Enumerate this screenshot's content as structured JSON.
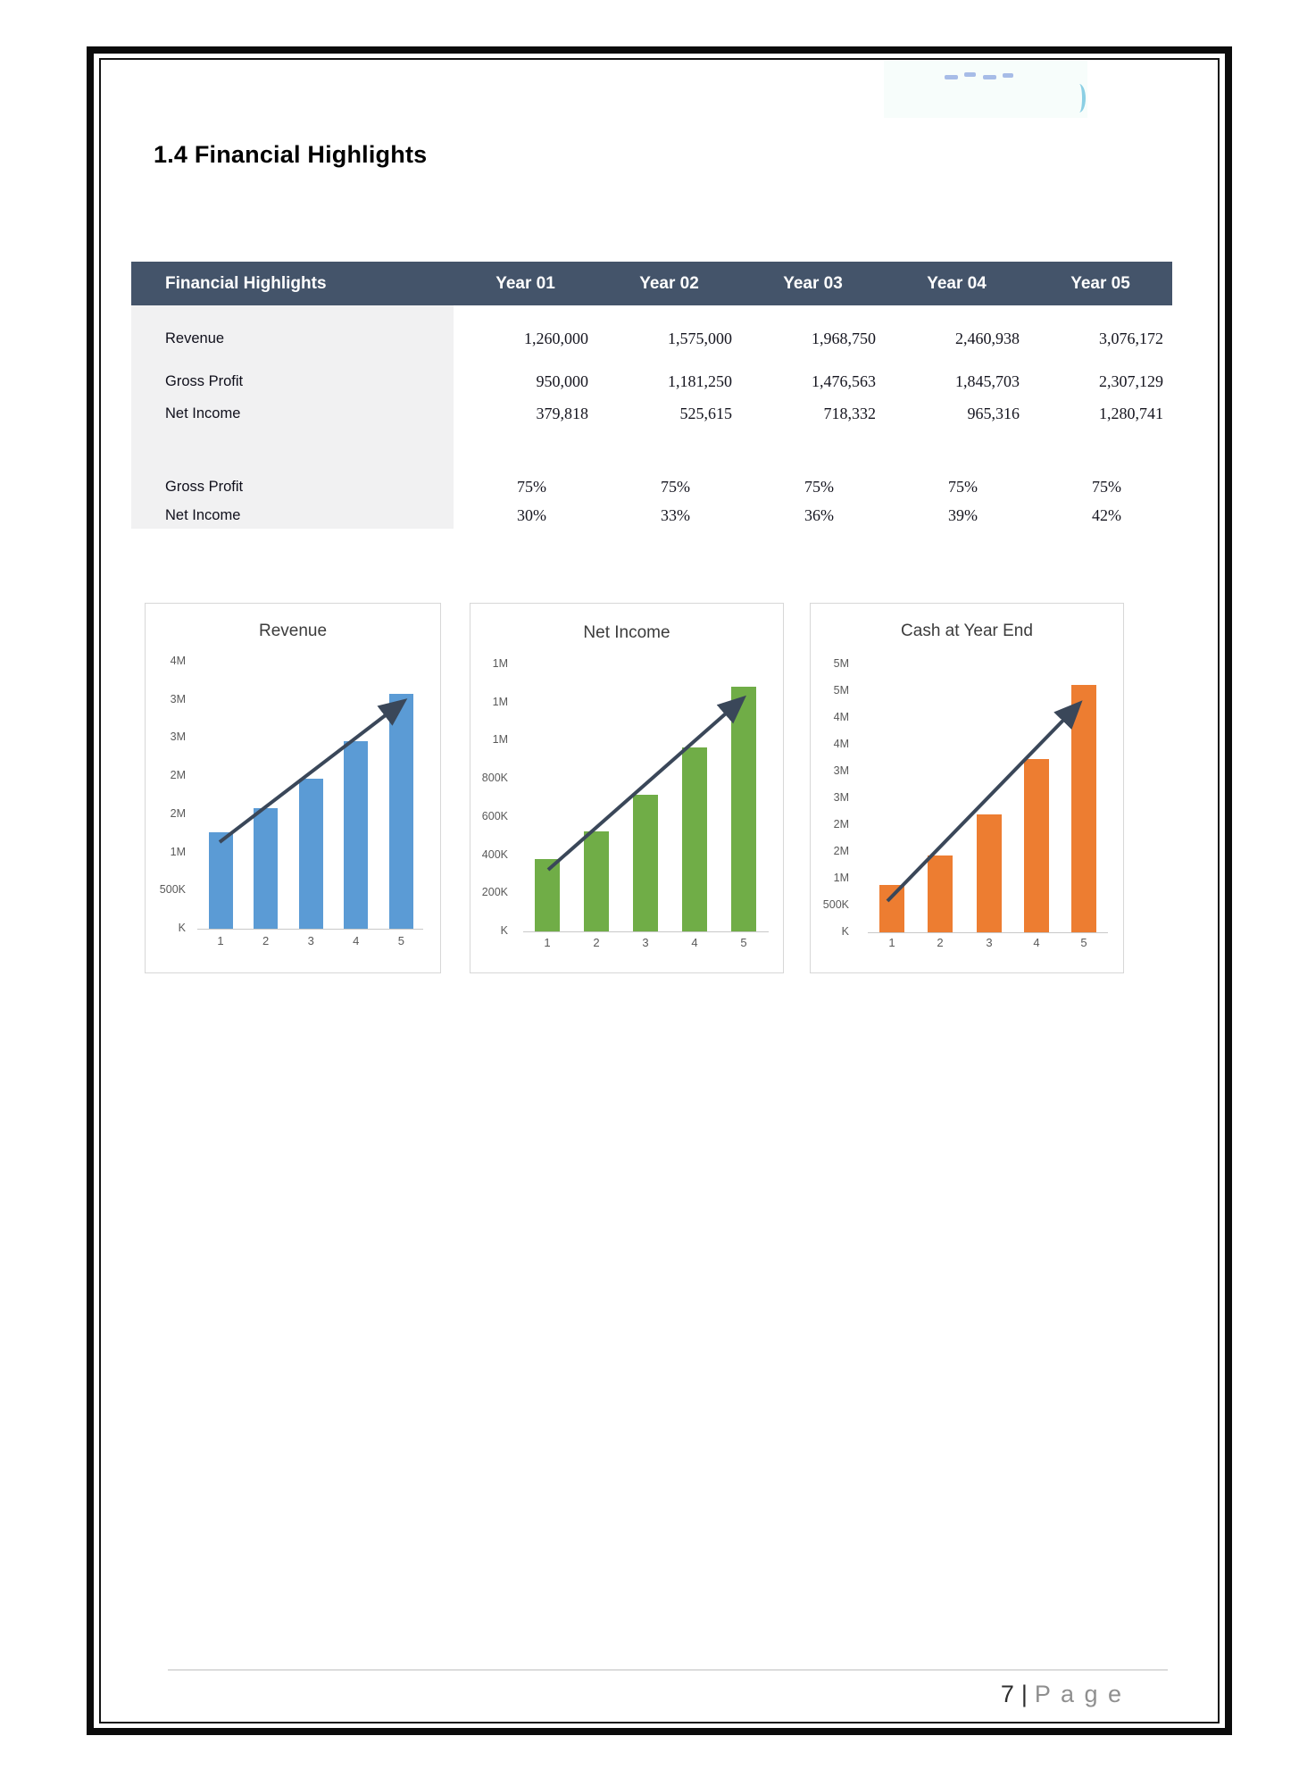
{
  "page": {
    "heading": "1.4 Financial Highlights",
    "footer": {
      "page_number": "7",
      "separator": "|",
      "label": "P a g e"
    }
  },
  "table": {
    "title": "Financial Highlights",
    "columns": [
      "Year 01",
      "Year 02",
      "Year 03",
      "Year 04",
      "Year 05"
    ],
    "rows": [
      {
        "label": "Revenue",
        "values": [
          "1,260,000",
          "1,575,000",
          "1,968,750",
          "2,460,938",
          "3,076,172"
        ]
      },
      {
        "label": "Gross Profit",
        "values": [
          "950,000",
          "1,181,250",
          "1,476,563",
          "1,845,703",
          "2,307,129"
        ]
      },
      {
        "label": "Net Income",
        "values": [
          "379,818",
          "525,615",
          "718,332",
          "965,316",
          "1,280,741"
        ]
      }
    ],
    "percent_rows": [
      {
        "label": "Gross Profit",
        "values": [
          "75%",
          "75%",
          "75%",
          "75%",
          "75%"
        ]
      },
      {
        "label": "Net Income",
        "values": [
          "30%",
          "33%",
          "36%",
          "39%",
          "42%"
        ]
      }
    ],
    "header_bg": "#44546A",
    "label_column_bg": "#F1F1F2"
  },
  "chart_data": [
    {
      "type": "bar",
      "title": "Revenue",
      "categories": [
        "1",
        "2",
        "3",
        "4",
        "5"
      ],
      "values": [
        1260000,
        1575000,
        1968750,
        2460938,
        3076172
      ],
      "bar_color": "#5B9BD5",
      "trend_arrow_color": "#3A4759",
      "xlabel": "",
      "ylabel": "",
      "ylim": [
        0,
        3500000
      ],
      "y_tick_labels_top_to_bottom": [
        "4M",
        "3M",
        "3M",
        "2M",
        "2M",
        "1M",
        "500K",
        "K"
      ],
      "grid": false,
      "legend": "none"
    },
    {
      "type": "bar",
      "title": "Net Income",
      "categories": [
        "1",
        "2",
        "3",
        "4",
        "5"
      ],
      "values": [
        379818,
        525615,
        718332,
        965316,
        1280741
      ],
      "bar_color": "#70AD47",
      "trend_arrow_color": "#3A4759",
      "xlabel": "",
      "ylabel": "",
      "ylim": [
        0,
        1400000
      ],
      "y_tick_labels_top_to_bottom": [
        "1M",
        "1M",
        "1M",
        "800K",
        "600K",
        "400K",
        "200K",
        "K"
      ],
      "grid": false,
      "legend": "none"
    },
    {
      "type": "bar",
      "title": "Cash at Year End",
      "categories": [
        "1",
        "2",
        "3",
        "4",
        "5"
      ],
      "values": [
        880000,
        1430000,
        2200000,
        3230000,
        4620000
      ],
      "bar_color": "#ED7D31",
      "trend_arrow_color": "#3A4759",
      "xlabel": "",
      "ylabel": "",
      "ylim": [
        0,
        5000000
      ],
      "y_tick_labels_top_to_bottom": [
        "5M",
        "5M",
        "4M",
        "4M",
        "3M",
        "3M",
        "2M",
        "2M",
        "1M",
        "500K",
        "K"
      ],
      "grid": false,
      "legend": "none"
    }
  ]
}
